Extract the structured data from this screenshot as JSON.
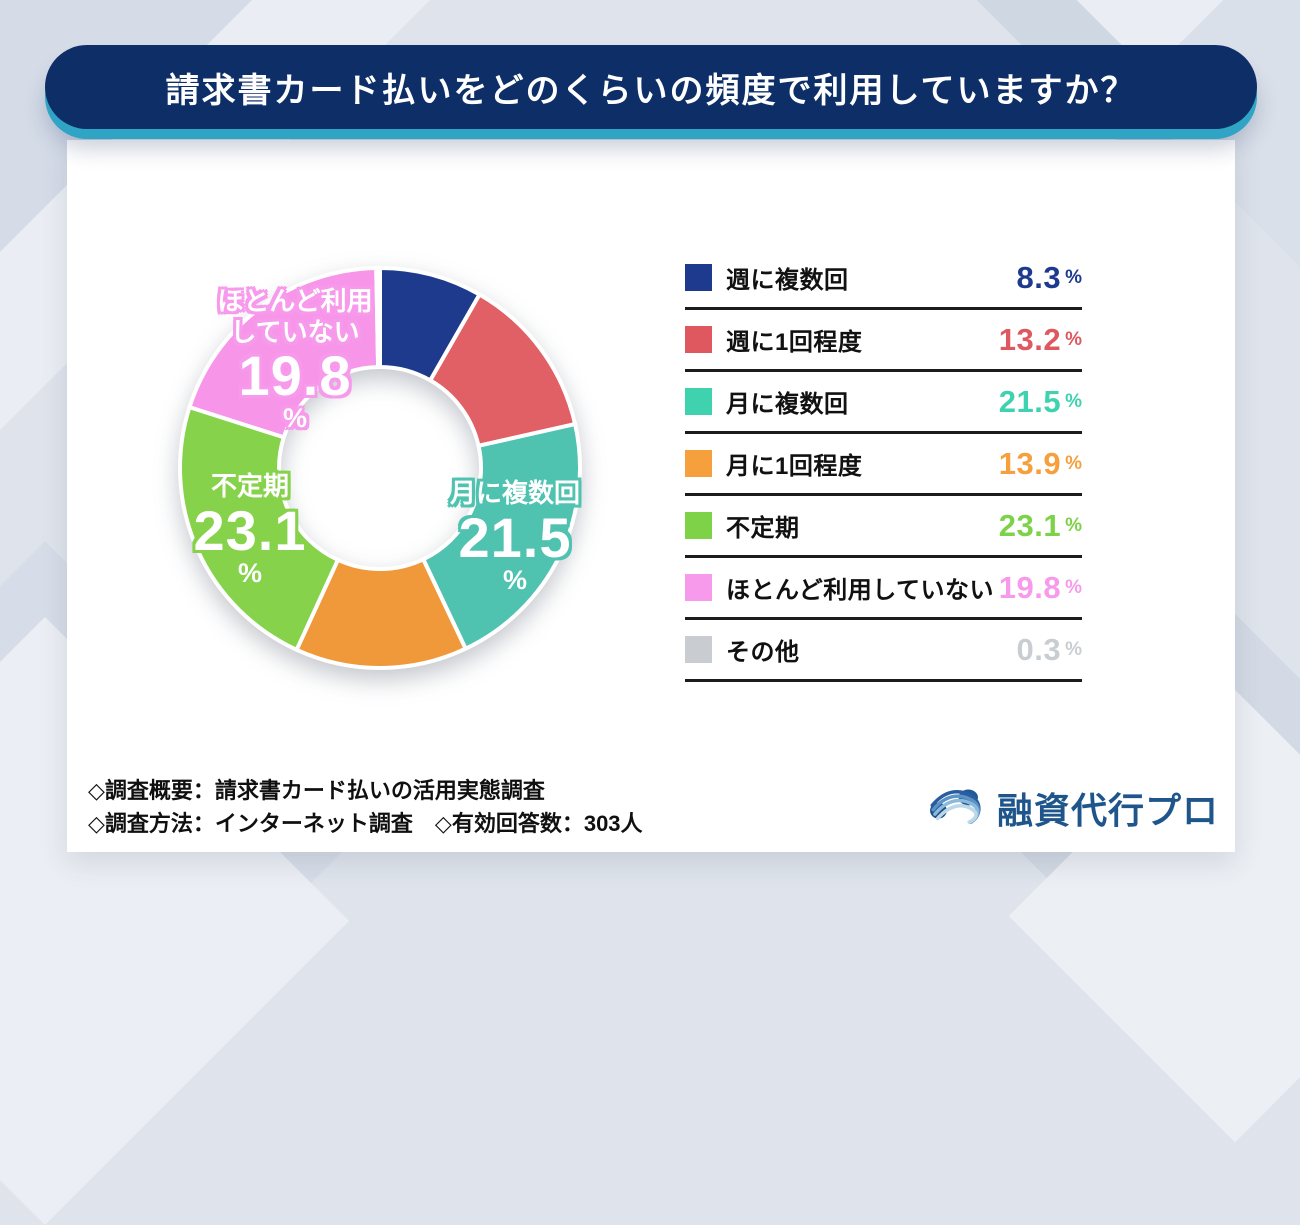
{
  "header": {
    "title": "請求書カード払いをどのくらいの頻度で利用していますか？"
  },
  "chart_data": {
    "type": "pie",
    "donut": true,
    "title": "請求書カード払いをどのくらいの頻度で利用していますか？",
    "unit": "%",
    "start_angle_deg": 0,
    "direction": "clockwise",
    "legend_position": "right",
    "items": [
      {
        "label": "週に複数回",
        "value": 8.3,
        "color": "#1e3a8f",
        "donut_color": "#1e3a8c"
      },
      {
        "label": "週に1回程度",
        "value": 13.2,
        "color": "#e0585f",
        "donut_color": "#e06065"
      },
      {
        "label": "月に複数回",
        "value": 21.5,
        "color": "#3ed3ae",
        "donut_color": "#4fc2b0"
      },
      {
        "label": "月に1回程度",
        "value": 13.9,
        "color": "#f5a03c",
        "donut_color": "#f0993a"
      },
      {
        "label": "不定期",
        "value": 23.1,
        "color": "#7ed247",
        "donut_color": "#86d24b"
      },
      {
        "label": "ほとんど利用していない",
        "value": 19.8,
        "color": "#f79aec",
        "donut_color": "#f795e9"
      },
      {
        "label": "その他",
        "value": 0.3,
        "color": "#c9cdd1",
        "donut_color": "#aebabf"
      }
    ]
  },
  "donut_labels": {
    "pink": {
      "line1": "ほとんど利用",
      "line2": "していない",
      "value": "19.8",
      "unit": "%"
    },
    "green": {
      "line1": "不定期",
      "value": "23.1",
      "unit": "%"
    },
    "teal": {
      "line1": "月に複数回",
      "value": "21.5",
      "unit": "%"
    }
  },
  "footer": {
    "line1": "◇調査概要：請求書カード払いの活用実態調査",
    "line2": "◇調査方法：インターネット調査　◇有効回答数：303人"
  },
  "logo": {
    "text": "融資代行プロ"
  },
  "colors": {
    "banner_bg": "#0d2e67",
    "banner_shadow": "#2fa4c5",
    "card_bg": "#ffffff",
    "page_bg": "#dfe4ec",
    "divider": "#1c1c1c",
    "logo_text": "#1e568c"
  }
}
